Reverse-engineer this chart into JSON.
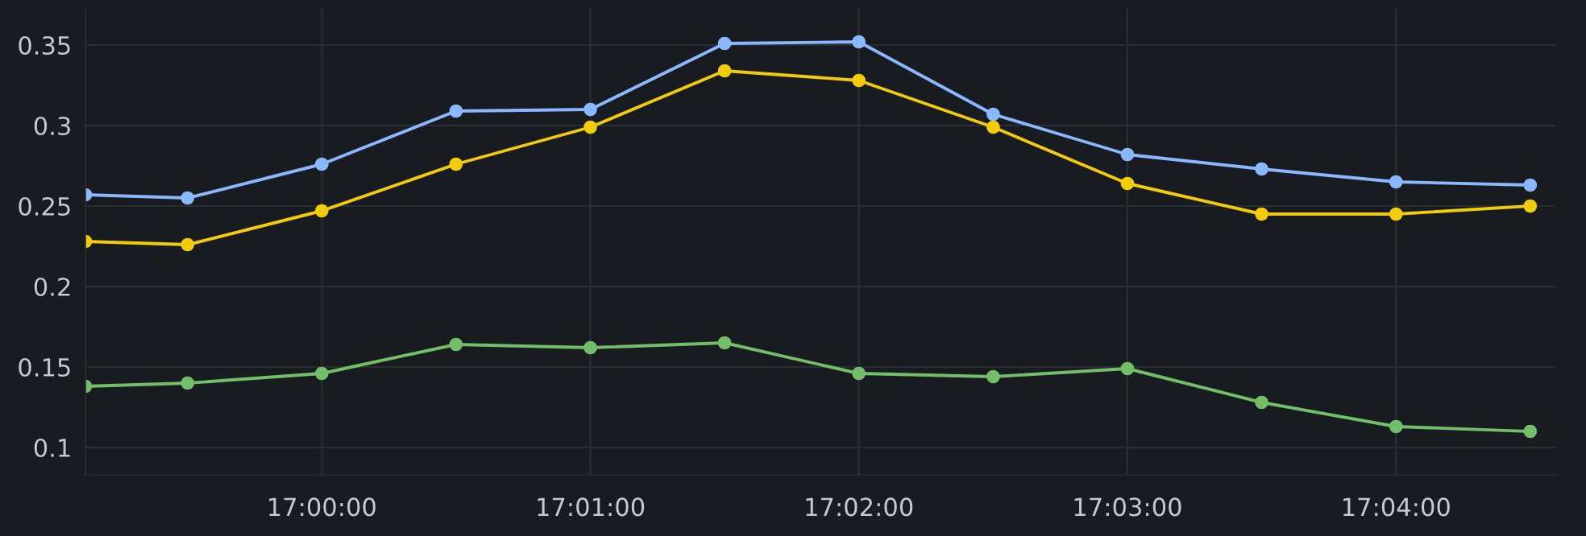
{
  "chart_data": {
    "type": "line",
    "x": [
      16.98533,
      16.99167,
      17.0,
      17.00833,
      17.01667,
      17.025,
      17.03333,
      17.04167,
      17.05,
      17.05833,
      17.06667,
      17.075
    ],
    "series": [
      {
        "color": "#8ab8ff",
        "values": [
          0.257,
          0.255,
          0.276,
          0.309,
          0.31,
          0.351,
          0.352,
          0.307,
          0.282,
          0.273,
          0.265,
          0.263
        ]
      },
      {
        "color": "#f2cc0c",
        "values": [
          0.228,
          0.226,
          0.247,
          0.276,
          0.299,
          0.334,
          0.328,
          0.299,
          0.264,
          0.245,
          0.245,
          0.25
        ]
      },
      {
        "color": "#73bf69",
        "values": [
          0.138,
          0.14,
          0.146,
          0.164,
          0.162,
          0.165,
          0.146,
          0.144,
          0.149,
          0.128,
          0.113,
          0.11
        ]
      }
    ],
    "xlim": [
      16.98533,
      17.07656
    ],
    "xticks": [
      {
        "value": 17.0,
        "label": "17:00:00"
      },
      {
        "value": 17.01667,
        "label": "17:01:00"
      },
      {
        "value": 17.03333,
        "label": "17:02:00"
      },
      {
        "value": 17.05,
        "label": "17:03:00"
      },
      {
        "value": 17.06667,
        "label": "17:04:00"
      }
    ],
    "ylim": [
      0.083,
      0.373
    ],
    "yticks": [
      0.1,
      0.15,
      0.2,
      0.25,
      0.3,
      0.35
    ],
    "grid": true,
    "marker": "circle",
    "line_style": "solid",
    "legend": false
  }
}
